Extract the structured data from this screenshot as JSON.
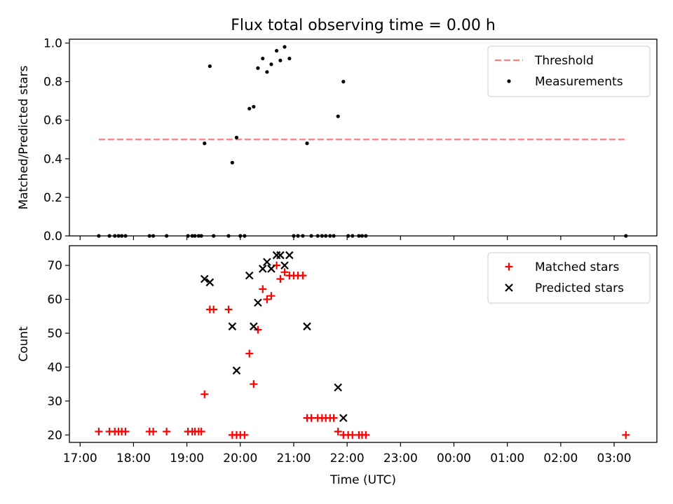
{
  "figure": {
    "title": "Flux total observing time = 0.00 h"
  },
  "chart_data": [
    {
      "type": "scatter",
      "ylabel": "Matched/Predicted stars",
      "ylim": [
        0,
        1.02
      ],
      "yticks": [
        "0.0",
        "0.2",
        "0.4",
        "0.6",
        "0.8",
        "1.0"
      ],
      "ytick_values": [
        0,
        0.2,
        0.4,
        0.6,
        0.8,
        1.0
      ],
      "xlim": [
        16.8,
        27.8
      ],
      "xtick_values": [
        17,
        18,
        19,
        20,
        21,
        22,
        23,
        24,
        25,
        26,
        27
      ],
      "legend_position": "top-right",
      "threshold": {
        "name": "Threshold",
        "value": 0.5,
        "x": [
          17.35,
          27.2
        ],
        "color": "#ff7f7f",
        "style": "dashed"
      },
      "series": [
        {
          "name": "Measurements",
          "color": "#000000",
          "marker": "dot",
          "points": [
            [
              17.35,
              0
            ],
            [
              17.55,
              0
            ],
            [
              17.65,
              0
            ],
            [
              17.72,
              0
            ],
            [
              17.78,
              0
            ],
            [
              17.85,
              0
            ],
            [
              18.3,
              0
            ],
            [
              18.37,
              0
            ],
            [
              18.62,
              0
            ],
            [
              19.02,
              0
            ],
            [
              19.1,
              0
            ],
            [
              19.15,
              0
            ],
            [
              19.22,
              0
            ],
            [
              19.27,
              0
            ],
            [
              19.33,
              0.48
            ],
            [
              19.43,
              0.88
            ],
            [
              19.5,
              0
            ],
            [
              19.78,
              0
            ],
            [
              19.85,
              0.38
            ],
            [
              19.93,
              0.51
            ],
            [
              20.0,
              0
            ],
            [
              20.08,
              0
            ],
            [
              20.17,
              0.66
            ],
            [
              20.25,
              0.67
            ],
            [
              20.33,
              0.87
            ],
            [
              20.42,
              0.92
            ],
            [
              20.5,
              0.85
            ],
            [
              20.58,
              0.89
            ],
            [
              20.68,
              0.96
            ],
            [
              20.75,
              0.91
            ],
            [
              20.83,
              0.98
            ],
            [
              20.92,
              0.92
            ],
            [
              21.0,
              0
            ],
            [
              21.08,
              0
            ],
            [
              21.17,
              0
            ],
            [
              21.25,
              0.48
            ],
            [
              21.33,
              0
            ],
            [
              21.45,
              0
            ],
            [
              21.53,
              0
            ],
            [
              21.6,
              0
            ],
            [
              21.68,
              0
            ],
            [
              21.75,
              0
            ],
            [
              21.83,
              0.62
            ],
            [
              21.93,
              0.8
            ],
            [
              22.02,
              0
            ],
            [
              22.1,
              0
            ],
            [
              22.22,
              0
            ],
            [
              22.28,
              0
            ],
            [
              22.35,
              0
            ],
            [
              27.22,
              0
            ]
          ]
        }
      ]
    },
    {
      "type": "scatter",
      "xlabel": "Time (UTC)",
      "ylabel": "Count",
      "ylim": [
        17.8,
        75.8
      ],
      "yticks": [
        "20",
        "30",
        "40",
        "50",
        "60",
        "70"
      ],
      "ytick_values": [
        20,
        30,
        40,
        50,
        60,
        70
      ],
      "xlim": [
        16.8,
        27.8
      ],
      "xtick_values": [
        17,
        18,
        19,
        20,
        21,
        22,
        23,
        24,
        25,
        26,
        27
      ],
      "xticks": [
        "17:00",
        "18:00",
        "19:00",
        "20:00",
        "21:00",
        "22:00",
        "23:00",
        "00:00",
        "01:00",
        "02:00",
        "03:00"
      ],
      "legend_position": "top-right",
      "series": [
        {
          "name": "Matched stars",
          "color": "#ff0000",
          "marker": "plus",
          "points": [
            [
              17.35,
              21
            ],
            [
              17.55,
              21
            ],
            [
              17.65,
              21
            ],
            [
              17.72,
              21
            ],
            [
              17.78,
              21
            ],
            [
              17.85,
              21
            ],
            [
              18.3,
              21
            ],
            [
              18.37,
              21
            ],
            [
              18.62,
              21
            ],
            [
              19.02,
              21
            ],
            [
              19.1,
              21
            ],
            [
              19.15,
              21
            ],
            [
              19.22,
              21
            ],
            [
              19.27,
              21
            ],
            [
              19.33,
              32
            ],
            [
              19.43,
              57
            ],
            [
              19.5,
              57
            ],
            [
              19.78,
              57
            ],
            [
              19.85,
              20
            ],
            [
              19.93,
              20
            ],
            [
              20.0,
              20
            ],
            [
              20.08,
              20
            ],
            [
              20.17,
              44
            ],
            [
              20.25,
              35
            ],
            [
              20.33,
              51
            ],
            [
              20.42,
              63
            ],
            [
              20.5,
              60
            ],
            [
              20.58,
              61
            ],
            [
              20.68,
              70
            ],
            [
              20.75,
              66
            ],
            [
              20.83,
              68
            ],
            [
              20.92,
              67
            ],
            [
              21.0,
              67
            ],
            [
              21.08,
              67
            ],
            [
              21.17,
              67
            ],
            [
              21.25,
              25
            ],
            [
              21.33,
              25
            ],
            [
              21.45,
              25
            ],
            [
              21.53,
              25
            ],
            [
              21.6,
              25
            ],
            [
              21.68,
              25
            ],
            [
              21.75,
              25
            ],
            [
              21.83,
              21
            ],
            [
              21.93,
              20
            ],
            [
              22.02,
              20
            ],
            [
              22.1,
              20
            ],
            [
              22.22,
              20
            ],
            [
              22.28,
              20
            ],
            [
              22.35,
              20
            ],
            [
              27.22,
              20
            ]
          ]
        },
        {
          "name": "Predicted stars",
          "color": "#000000",
          "marker": "x",
          "points": [
            [
              19.33,
              66
            ],
            [
              19.43,
              65
            ],
            [
              19.85,
              52
            ],
            [
              19.93,
              39
            ],
            [
              20.17,
              67
            ],
            [
              20.25,
              52
            ],
            [
              20.33,
              59
            ],
            [
              20.42,
              69
            ],
            [
              20.5,
              71
            ],
            [
              20.58,
              69
            ],
            [
              20.68,
              73
            ],
            [
              20.75,
              73
            ],
            [
              20.83,
              70
            ],
            [
              20.92,
              73
            ],
            [
              21.25,
              52
            ],
            [
              21.83,
              34
            ],
            [
              21.93,
              25
            ]
          ]
        }
      ]
    }
  ]
}
